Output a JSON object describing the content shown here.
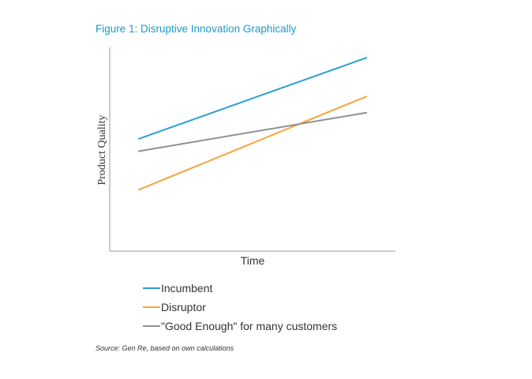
{
  "figure_title": "Figure 1:  Disruptive Innovation Graphically",
  "source": "Source: Gen Re, based on own calculations",
  "colors": {
    "accent": "#1a9bc9",
    "axis": "#999999"
  },
  "chart_data": {
    "type": "line",
    "title": "Figure 1:  Disruptive Innovation Graphically",
    "xlabel": "Time",
    "ylabel": "Product Quality",
    "grid": false,
    "legend_position": "below",
    "xlim": [
      0,
      10
    ],
    "ylim": [
      0,
      10
    ],
    "x": [
      1,
      9
    ],
    "series": [
      {
        "name": "Incumbent",
        "color": "#2b9fd3",
        "values": [
          5.5,
          9.5
        ]
      },
      {
        "name": "Disruptor",
        "color": "#f5a53b",
        "values": [
          3.0,
          7.6
        ]
      },
      {
        "name": "\"Good Enough\" for many customers",
        "color": "#8c9196",
        "values": [
          4.9,
          6.8
        ]
      }
    ]
  }
}
